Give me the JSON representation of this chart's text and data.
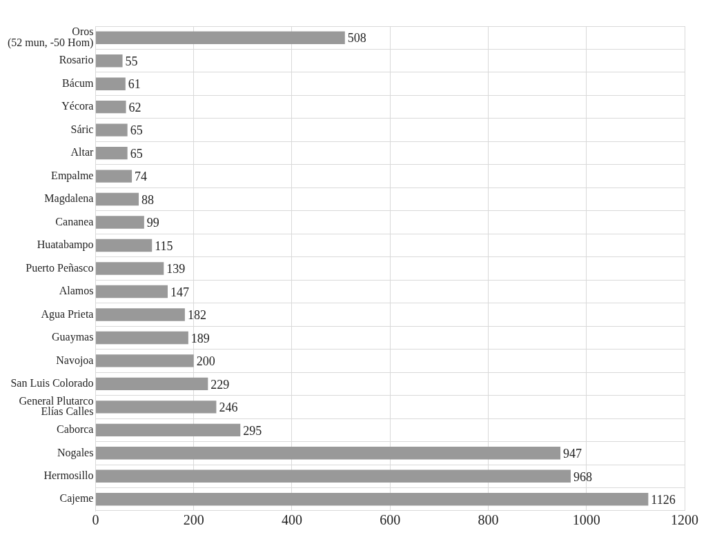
{
  "chart_data": {
    "type": "bar",
    "orientation": "horizontal",
    "categories": [
      "Oros\n(52 mun, -50 Hom)",
      "Rosario",
      "Bácum",
      "Yécora",
      "Sáric",
      "Altar",
      "Empalme",
      "Magdalena",
      "Cananea",
      "Huatabampo",
      "Puerto Peñasco",
      "Alamos",
      "Agua Prieta",
      "Guaymas",
      "Navojoa",
      "San Luis Colorado",
      "General Plutarco\nElías Calles",
      "Caborca",
      "Nogales",
      "Hermosillo",
      "Cajeme"
    ],
    "values": [
      508,
      55,
      61,
      62,
      65,
      65,
      74,
      88,
      99,
      115,
      139,
      147,
      182,
      189,
      200,
      229,
      246,
      295,
      947,
      968,
      1126
    ],
    "color": "#999999",
    "xlim": [
      0,
      1200
    ],
    "xticks": [
      0,
      200,
      400,
      600,
      800,
      1000,
      1200
    ],
    "grid": true,
    "data_labels": true
  }
}
